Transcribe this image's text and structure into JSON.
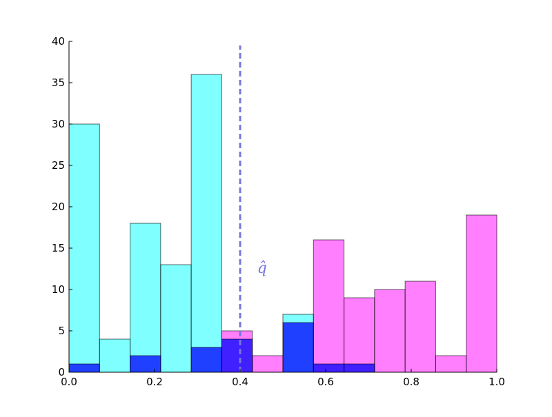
{
  "chart_data": {
    "type": "bar",
    "title": "",
    "xlabel": "",
    "ylabel": "",
    "xlim": [
      0.0,
      1.0
    ],
    "ylim": [
      0,
      40
    ],
    "x_ticks": [
      "0.0",
      "0.2",
      "0.4",
      "0.6",
      "0.8",
      "1.0"
    ],
    "y_ticks": [
      "0",
      "5",
      "10",
      "15",
      "20",
      "25",
      "30",
      "35",
      "40"
    ],
    "bin_edges": [
      0.0,
      0.0714,
      0.1429,
      0.2143,
      0.2857,
      0.3571,
      0.4286,
      0.5,
      0.5714,
      0.6429,
      0.7143,
      0.7857,
      0.8571,
      0.9286,
      1.0
    ],
    "series": [
      {
        "color": "#00ffff",
        "opacity": 0.5,
        "values": [
          30,
          4,
          18,
          13,
          36,
          0,
          0,
          7,
          0,
          0,
          0,
          0,
          0,
          0
        ]
      },
      {
        "color": "#ff00ff",
        "opacity": 0.5,
        "values": [
          0,
          0,
          0,
          0,
          0,
          5,
          2,
          0,
          16,
          9,
          10,
          11,
          2,
          19
        ]
      },
      {
        "color": "#0000ff",
        "opacity": 0.75,
        "values": [
          1,
          0,
          2,
          0,
          3,
          4,
          0,
          6,
          1,
          1,
          0,
          0,
          0,
          0
        ]
      }
    ],
    "threshold_line": {
      "x": 0.4,
      "style": "dashed",
      "color": "#7777dd",
      "label": "q̂"
    },
    "grid": false,
    "legend": "none"
  }
}
